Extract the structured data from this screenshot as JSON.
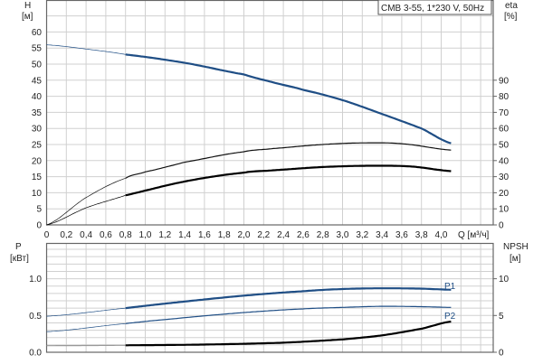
{
  "chart_data": [
    {
      "type": "line",
      "title": "CMB 3-55, 1*230 V, 50Hz",
      "xlabel": "Q [м³/ч]",
      "ylabel": "H",
      "ylabel_unit": "[м]",
      "y2label": "eta",
      "y2label_unit": "[%]",
      "xlim": [
        0,
        4.5
      ],
      "ylim": [
        0,
        70
      ],
      "y2lim": [
        0,
        140
      ],
      "grid": true,
      "x_ticks": [
        "0",
        "0,2",
        "0,4",
        "0,6",
        "0,8",
        "1,0",
        "1,2",
        "1,4",
        "1,6",
        "1,8",
        "2,0",
        "2,2",
        "2,4",
        "2,6",
        "2,8",
        "3,0",
        "3,2",
        "3,4",
        "3,6",
        "3,8",
        "4,0"
      ],
      "y_ticks": [
        "0",
        "5",
        "10",
        "15",
        "20",
        "25",
        "30",
        "35",
        "40",
        "45",
        "50",
        "55",
        "60"
      ],
      "y2_ticks": [
        "0",
        "10",
        "20",
        "30",
        "40",
        "50",
        "60",
        "70",
        "80",
        "90"
      ],
      "operating_range_start_q": 0.8,
      "series": [
        {
          "axis": "H",
          "color": "#1f4e85",
          "x": [
            0,
            0.4,
            0.8,
            1.4,
            2.0,
            2.3,
            2.6,
            3.0,
            3.4,
            3.8,
            4.11
          ],
          "y": [
            56,
            54.7,
            53,
            50.4,
            46.8,
            44.3,
            42,
            38.8,
            34.5,
            30,
            25.3
          ]
        },
        {
          "axis": "eta",
          "color": "#111111",
          "x": [
            0,
            0.4,
            0.8,
            1.0,
            1.4,
            2.0,
            2.3,
            2.8,
            3.2,
            3.6,
            4.11
          ],
          "y": [
            0,
            17,
            29,
            33,
            39,
            45.5,
            47.5,
            50,
            51,
            50.5,
            46.5
          ]
        },
        {
          "axis": "eta",
          "color": "#000000",
          "x": [
            0,
            0.4,
            0.8,
            1.4,
            2.0,
            2.3,
            2.8,
            3.3,
            3.7,
            4.11
          ],
          "y": [
            0,
            10.6,
            18.4,
            27,
            32.5,
            34,
            36,
            36.8,
            36.3,
            33.4
          ]
        }
      ]
    },
    {
      "type": "line",
      "xlabel": "",
      "ylabel": "P",
      "ylabel_unit": "[кВт]",
      "y2label": "NPSH",
      "y2label_unit": "[м]",
      "xlim": [
        0,
        4.5
      ],
      "ylim": [
        0,
        1.5
      ],
      "y2lim": [
        0,
        15
      ],
      "grid": true,
      "y_ticks": [
        "0.0",
        "0.5",
        "1.0"
      ],
      "y2_ticks": [
        "0",
        "5",
        "10"
      ],
      "operating_range_start_q": 0.8,
      "series": [
        {
          "name": "P1",
          "axis": "P",
          "color": "#1f4e85",
          "x": [
            0,
            0.8,
            1.4,
            2.0,
            2.6,
            3.0,
            3.4,
            3.8,
            4.11
          ],
          "y": [
            0.49,
            0.6,
            0.69,
            0.77,
            0.83,
            0.86,
            0.87,
            0.865,
            0.85
          ]
        },
        {
          "name": "P2",
          "axis": "P",
          "color": "#1f4e85",
          "x": [
            0,
            0.8,
            1.4,
            2.0,
            2.6,
            3.0,
            3.4,
            3.8,
            4.11
          ],
          "y": [
            0.28,
            0.39,
            0.47,
            0.54,
            0.59,
            0.61,
            0.625,
            0.62,
            0.61
          ]
        },
        {
          "axis": "NPSH",
          "color": "#000000",
          "x": [
            0,
            0.8,
            1.6,
            2.4,
            3.0,
            3.4,
            3.8,
            4.11
          ],
          "y": [
            0.9,
            0.95,
            1.05,
            1.3,
            1.75,
            2.3,
            3.2,
            4.2
          ]
        }
      ]
    }
  ]
}
